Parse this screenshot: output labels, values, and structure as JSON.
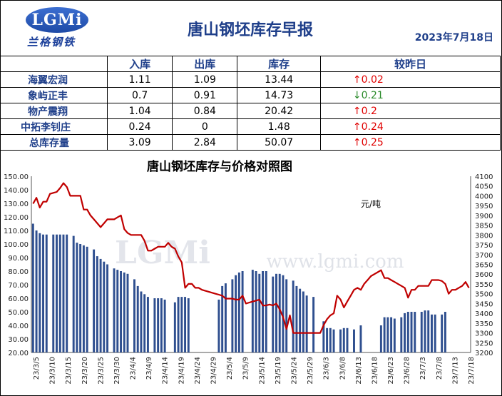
{
  "header": {
    "logo_text": "LGMi",
    "logo_cn": "兰格钢铁",
    "title": "唐山钢坯库存早报",
    "date": "2023年7月18日"
  },
  "table": {
    "columns": [
      "",
      "入库",
      "出库",
      "库存",
      "较昨日"
    ],
    "rows": [
      {
        "name": "海翼宏润",
        "in": "1.11",
        "out": "1.09",
        "stock": "13.44",
        "arrow": "↑",
        "change": "0.02",
        "dir": "up"
      },
      {
        "name": "象屿正丰",
        "in": "0.7",
        "out": "0.91",
        "stock": "14.73",
        "arrow": "↓",
        "change": "0.21",
        "dir": "down"
      },
      {
        "name": "物产震翔",
        "in": "1.04",
        "out": "0.84",
        "stock": "20.42",
        "arrow": "↑",
        "change": "0.2",
        "dir": "up"
      },
      {
        "name": "中拓李钊庄",
        "in": "0.24",
        "out": "0",
        "stock": "1.48",
        "arrow": "↑",
        "change": "0.24",
        "dir": "up"
      },
      {
        "name": "总库存量",
        "in": "3.09",
        "out": "2.84",
        "stock": "50.07",
        "arrow": "↑",
        "change": "0.25",
        "dir": "up"
      }
    ]
  },
  "chart_data": {
    "type": "bar+line",
    "title": "唐山钢坯库存与价格对照图",
    "y2_unit": "元/吨",
    "watermark_url": "www.lgmi.com",
    "watermark_logo": "LGMi",
    "ylim": [
      20,
      150
    ],
    "yticks": [
      "20.00",
      "30.00",
      "40.00",
      "50.00",
      "60.00",
      "70.00",
      "80.00",
      "90.00",
      "100.00",
      "110.00",
      "120.00",
      "130.00",
      "140.00",
      "150.00"
    ],
    "y2lim": [
      3200,
      4100
    ],
    "y2ticks": [
      "3200",
      "3250",
      "3300",
      "3350",
      "3400",
      "3450",
      "3500",
      "3550",
      "3600",
      "3650",
      "3700",
      "3750",
      "3800",
      "3850",
      "3900",
      "3950",
      "4000",
      "4050",
      "4100"
    ],
    "xtick_labels": [
      "23/3/5",
      "23/3/10",
      "23/3/15",
      "23/3/20",
      "23/3/25",
      "23/3/30",
      "23/4/4",
      "23/4/9",
      "23/4/14",
      "23/4/19",
      "23/4/24",
      "23/4/29",
      "23/5/4",
      "23/5/9",
      "23/5/14",
      "23/5/19",
      "23/5/24",
      "23/5/29",
      "23/6/3",
      "23/6/8",
      "23/6/13",
      "23/6/18",
      "23/6/23",
      "23/6/28",
      "23/7/3",
      "23/7/8",
      "23/7/13",
      "23/7/18"
    ],
    "series": [
      {
        "name": "库存",
        "values": [
          115,
          110,
          108,
          107,
          107,
          null,
          107,
          107,
          107,
          107,
          107,
          null,
          106,
          101,
          100,
          99,
          98,
          null,
          96,
          91,
          89,
          87,
          85,
          null,
          82,
          81,
          80,
          79,
          78,
          null,
          74,
          69,
          65,
          63,
          61,
          null,
          60,
          60,
          60,
          59,
          null,
          null,
          57,
          61,
          61,
          61,
          60,
          null,
          null,
          null,
          null,
          null,
          null,
          null,
          null,
          59,
          69,
          71,
          null,
          74,
          77,
          79,
          80,
          null,
          null,
          81,
          80,
          78,
          80,
          80,
          null,
          76,
          78,
          78,
          77,
          74,
          null,
          73,
          69,
          67,
          65,
          62,
          null,
          61,
          null,
          null,
          43,
          38,
          38,
          37,
          null,
          37,
          38,
          38,
          null,
          37,
          null,
          40,
          null,
          null,
          null,
          null,
          null,
          40,
          46,
          46,
          46,
          45,
          null,
          46,
          49,
          50,
          50,
          50,
          null,
          50,
          51,
          51,
          48,
          48,
          null,
          48,
          50
        ]
      },
      {
        "name": "价格",
        "values": [
          3960,
          3990,
          3940,
          3970,
          3970,
          4010,
          4015,
          4020,
          4040,
          4065,
          4045,
          4000,
          4000,
          4000,
          4000,
          3930,
          3930,
          3900,
          3880,
          3860,
          3840,
          3860,
          3880,
          3880,
          3880,
          3890,
          3900,
          3830,
          3810,
          3800,
          3800,
          3800,
          3800,
          3770,
          3720,
          3720,
          3730,
          3740,
          3740,
          3740,
          3760,
          3740,
          3730,
          3690,
          3660,
          3530,
          3550,
          3550,
          3530,
          3530,
          3520,
          3515,
          3510,
          3505,
          3500,
          3495,
          3490,
          3475,
          3475,
          3475,
          3470,
          3470,
          3490,
          3450,
          3455,
          3460,
          3465,
          3470,
          3440,
          3440,
          3445,
          3440,
          3450,
          3420,
          3380,
          3320,
          3390,
          3300,
          3300,
          3300,
          3300,
          3300,
          3300,
          3300,
          3300,
          3300,
          3340,
          3370,
          3390,
          3400,
          3490,
          3470,
          3430,
          3460,
          3490,
          3520,
          3530,
          3520,
          3550,
          3570,
          3590,
          3600,
          3610,
          3620,
          3580,
          3580,
          3570,
          3560,
          3550,
          3540,
          3530,
          3480,
          3520,
          3520,
          3540,
          3540,
          3540,
          3540,
          3570,
          3570,
          3570,
          3565,
          3550,
          3500,
          3520,
          3520,
          3530,
          3540,
          3560,
          3530
        ]
      }
    ]
  }
}
